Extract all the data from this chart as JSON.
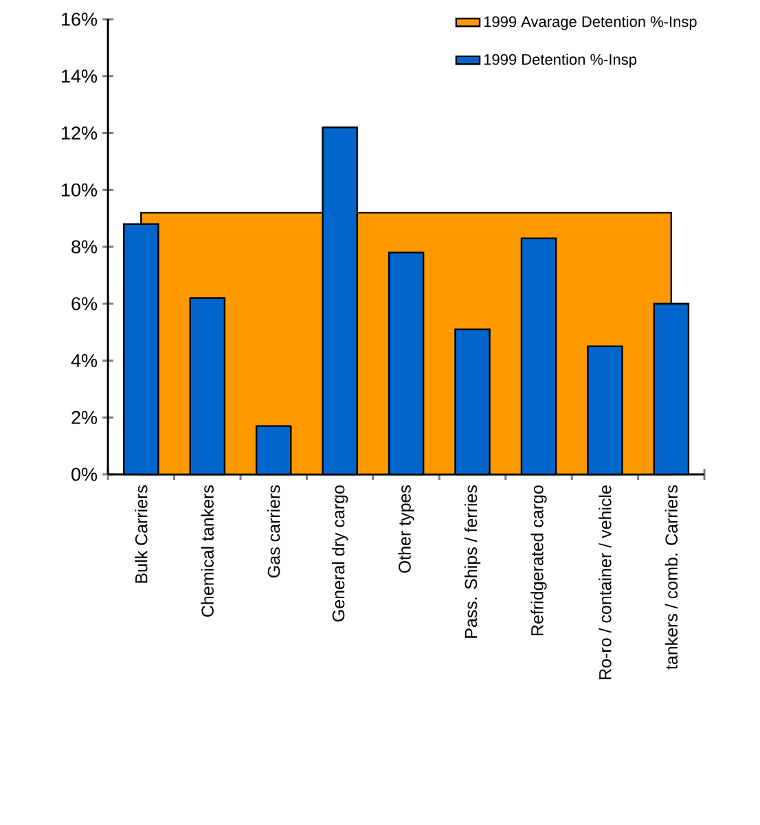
{
  "chart_data": {
    "type": "bar",
    "categories": [
      "Bulk Carriers",
      "Chemical tankers",
      "Gas carriers",
      "General dry cargo",
      "Other types",
      "Pass. Ships / ferries",
      "Refridgerated cargo",
      "Ro-ro / container / vehicle",
      "tankers / comb. Carriers"
    ],
    "series": [
      {
        "name": "1999 Avarage Detention %-Insp",
        "type": "area",
        "color": "#ff9900",
        "values": [
          9.2,
          9.2,
          9.2,
          null,
          9.2,
          9.2,
          9.2,
          9.2,
          9.2
        ]
      },
      {
        "name": "1999 Detention %-Insp",
        "color": "#0066cc",
        "values": [
          8.8,
          6.2,
          1.7,
          12.2,
          7.8,
          5.1,
          8.3,
          4.5,
          6.0
        ]
      }
    ],
    "ylim": [
      0,
      16
    ],
    "yticks": [
      {
        "value": 0,
        "label": "0%"
      },
      {
        "value": 2,
        "label": "2%"
      },
      {
        "value": 4,
        "label": "4%"
      },
      {
        "value": 6,
        "label": "6%"
      },
      {
        "value": 8,
        "label": "8%"
      },
      {
        "value": 10,
        "label": "10%"
      },
      {
        "value": 12,
        "label": "12%"
      },
      {
        "value": 14,
        "label": "14%"
      },
      {
        "value": 16,
        "label": "16%"
      }
    ],
    "legend": "top right"
  }
}
